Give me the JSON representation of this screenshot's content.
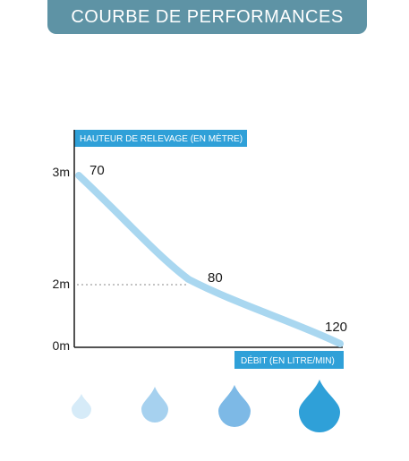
{
  "header": {
    "title": "COURBE DE PERFORMANCES"
  },
  "chart_data": {
    "type": "line",
    "ylabel": "HAUTEUR DE RELEVAGE (EN MÈTRE)",
    "xlabel": "DÉBIT (EN LITRE/MIN)",
    "y_tick_labels": [
      "3m",
      "2m",
      "0m"
    ],
    "y_ticks": [
      3,
      2,
      0
    ],
    "ylim": [
      0,
      3
    ],
    "x": [
      0,
      0.42,
      1
    ],
    "y": [
      2.8,
      1.0,
      0
    ],
    "data_labels": [
      "70",
      "80",
      "120"
    ],
    "reference_line": {
      "y": 1.0,
      "style": "dotted"
    },
    "grid": false,
    "colors": {
      "curve": "#a9d7f0",
      "axis": "#1a1a1a",
      "label_box": "#2fa0d8",
      "banner": "#5e93a5"
    }
  },
  "drops": [
    {
      "name": "drop-small",
      "color": "#d6ebf8"
    },
    {
      "name": "drop-medium",
      "color": "#a6d1ef"
    },
    {
      "name": "drop-large",
      "color": "#7db9e6"
    },
    {
      "name": "drop-xlarge",
      "color": "#2fa0d8"
    }
  ]
}
